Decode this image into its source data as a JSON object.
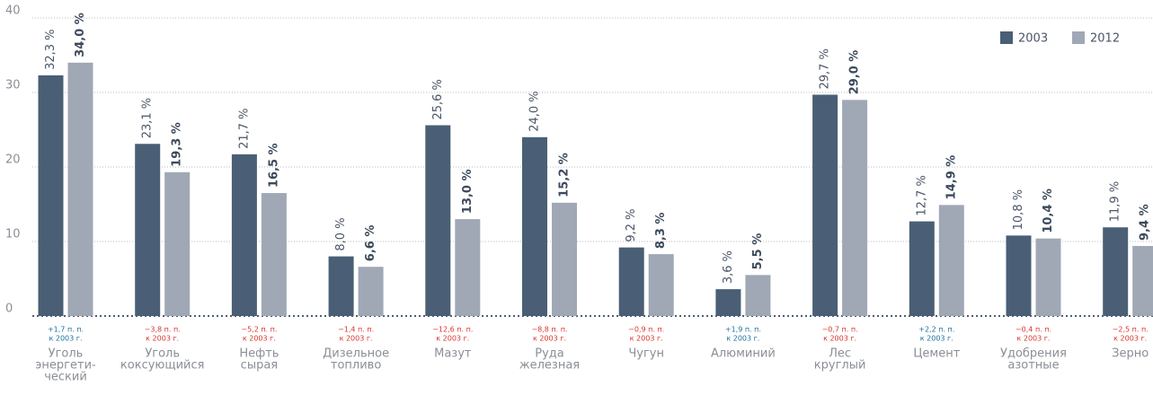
{
  "chart_data": {
    "type": "bar",
    "categories": [
      [
        "Уголь",
        "энергети-",
        "ческий"
      ],
      [
        "Уголь",
        "коксующийся"
      ],
      [
        "Нефть",
        "сырая"
      ],
      [
        "Дизельное",
        "топливо"
      ],
      [
        "Мазут"
      ],
      [
        "Руда",
        "железная"
      ],
      [
        "Чугун"
      ],
      [
        "Алюминий"
      ],
      [
        "Лес",
        "круглый"
      ],
      [
        "Цемент"
      ],
      [
        "Удобрения",
        "азотные"
      ],
      [
        "Зерно"
      ]
    ],
    "series": [
      {
        "name": "2003",
        "color": "#4a5f75",
        "values": [
          32.3,
          23.1,
          21.7,
          8.0,
          25.6,
          24.0,
          9.2,
          3.6,
          29.7,
          12.7,
          10.8,
          11.9
        ],
        "value_labels": [
          "32,3 %",
          "23,1 %",
          "21,7 %",
          "8,0 %",
          "25,6 %",
          "24,0 %",
          "9,2 %",
          "3,6 %",
          "29,7 %",
          "12,7 %",
          "10,8 %",
          "11,9 %"
        ]
      },
      {
        "name": "2012",
        "color": "#a0a8b6",
        "values": [
          34.0,
          19.3,
          16.5,
          6.6,
          13.0,
          15.2,
          8.3,
          5.5,
          29.0,
          14.9,
          10.4,
          9.4
        ],
        "value_labels": [
          "34,0 %",
          "19,3 %",
          "16,5 %",
          "6,6 %",
          "13,0 %",
          "15,2 %",
          "8,3 %",
          "5,5 %",
          "29,0 %",
          "14,9 %",
          "10,4 %",
          "9,4 %"
        ]
      }
    ],
    "annotations": [
      {
        "change": "+1,7 п. п.",
        "note": "к 2003 г.",
        "color": "#1d6f9c"
      },
      {
        "change": "−3,8 п. п.",
        "note": "к 2003 г.",
        "color": "#d9342b"
      },
      {
        "change": "−5,2 п. п.",
        "note": "к 2003 г.",
        "color": "#d9342b"
      },
      {
        "change": "−1,4 п. п.",
        "note": "к 2003 г.",
        "color": "#d9342b"
      },
      {
        "change": "−12,6 п. п.",
        "note": "к 2003 г.",
        "color": "#d9342b"
      },
      {
        "change": "−8,8 п. п.",
        "note": "к 2003 г.",
        "color": "#d9342b"
      },
      {
        "change": "−0,9 п. п.",
        "note": "к 2003 г.",
        "color": "#d9342b"
      },
      {
        "change": "+1,9 п. п.",
        "note": "к 2003 г.",
        "color": "#1d6f9c"
      },
      {
        "change": "−0,7 п. п.",
        "note": "к 2003 г.",
        "color": "#d9342b"
      },
      {
        "change": "+2,2 п. п.",
        "note": "к 2003 г.",
        "color": "#1d6f9c"
      },
      {
        "change": "−0,4 п. п.",
        "note": "к 2003 г.",
        "color": "#d9342b"
      },
      {
        "change": "−2,5 п. п.",
        "note": "к 2003 г.",
        "color": "#d9342b"
      }
    ],
    "ylim": [
      0,
      40
    ],
    "yticks": [
      0,
      10,
      20,
      30,
      40
    ],
    "grid": true,
    "legend": "top-right"
  }
}
